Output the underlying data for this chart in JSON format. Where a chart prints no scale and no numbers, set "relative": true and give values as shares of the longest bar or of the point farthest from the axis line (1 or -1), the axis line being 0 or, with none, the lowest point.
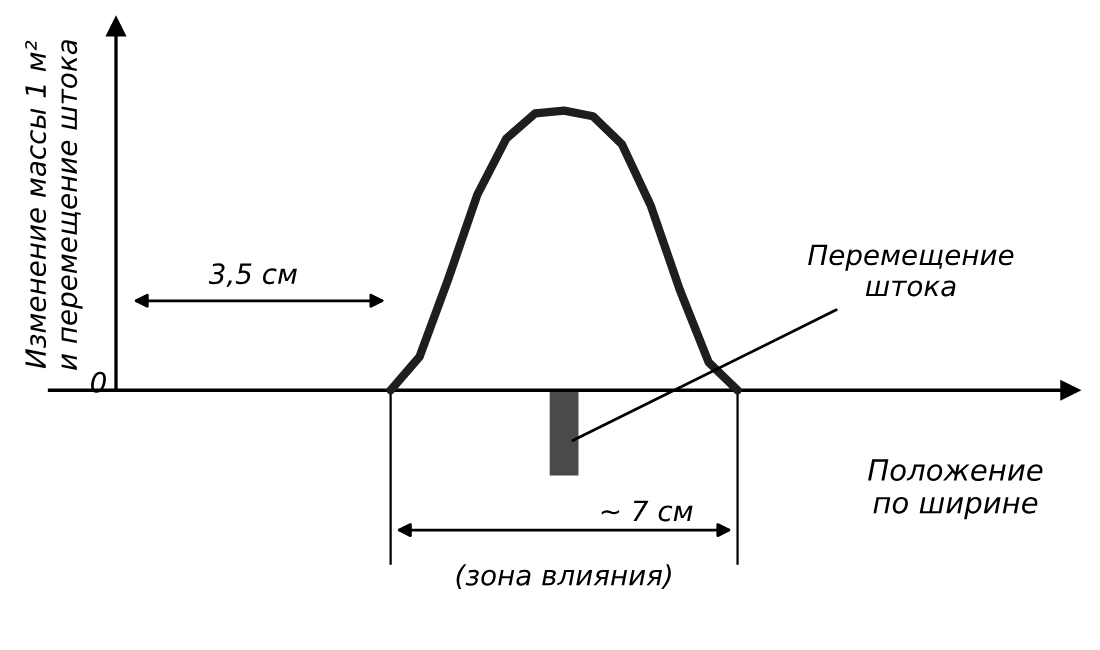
{
  "chart_data": {
    "type": "line",
    "relative": true,
    "xlabel": "Положение\nпо ширине",
    "categories": [
      null,
      null,
      null,
      null,
      null,
      null,
      null,
      null,
      null,
      null,
      null,
      null,
      null
    ],
    "series": [
      {
        "color": "#1e1e1e",
        "values": [
          0,
          0.12,
          0.4,
          0.7,
          0.9,
          0.99,
          1,
          0.98,
          0.88,
          0.66,
          0.36,
          0.1,
          0
        ]
      }
    ],
    "annotations": [
      "Изменение массы 1 м²\nи перемещение штока",
      "0",
      "3,5 см",
      "Перемещение\nштока",
      "~ 7 см",
      "(зона влияния)"
    ],
    "legend": false,
    "marker": "none",
    "line_style": "solid"
  }
}
